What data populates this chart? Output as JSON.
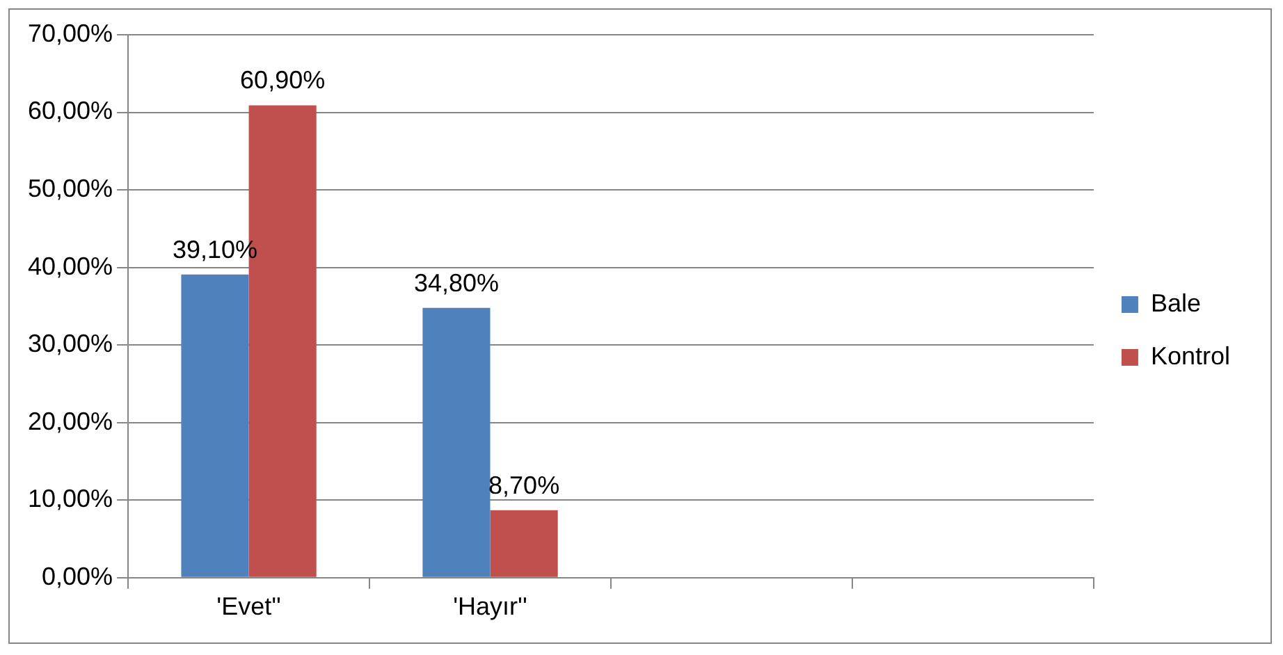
{
  "chart_data": {
    "type": "bar",
    "categories": [
      "'Evet''",
      "'Hayır''",
      null,
      null
    ],
    "series": [
      {
        "name": "Bale",
        "color": "#4f81bd",
        "values": [
          39.1,
          34.8,
          null,
          null
        ],
        "value_labels": [
          "39,10%",
          "34,80%",
          null,
          null
        ]
      },
      {
        "name": "Kontrol",
        "color": "#c0504d",
        "values": [
          60.9,
          8.7,
          null,
          null
        ],
        "value_labels": [
          "60,90%",
          "8,70%",
          null,
          null
        ]
      }
    ],
    "ylim": [
      0,
      70
    ],
    "yticks": [
      {
        "value": 0,
        "label": "0,00%"
      },
      {
        "value": 10,
        "label": "10,00%"
      },
      {
        "value": 20,
        "label": "20,00%"
      },
      {
        "value": 30,
        "label": "30,00%"
      },
      {
        "value": 40,
        "label": "40,00%"
      },
      {
        "value": 50,
        "label": "50,00%"
      },
      {
        "value": 60,
        "label": "60,00%"
      },
      {
        "value": 70,
        "label": "70,00%"
      }
    ],
    "grid": "y",
    "legend": "right"
  }
}
